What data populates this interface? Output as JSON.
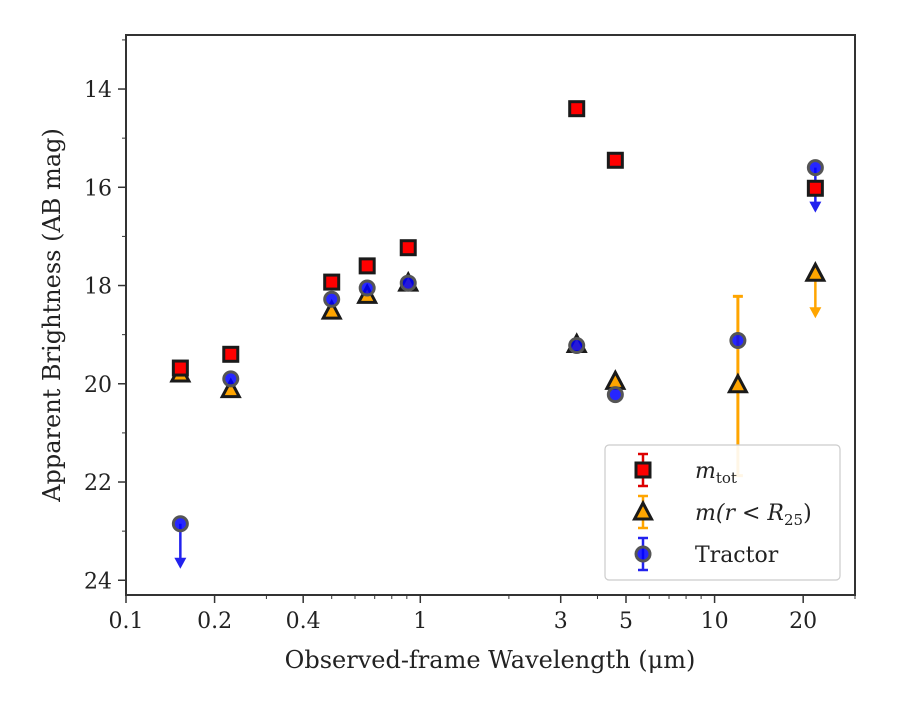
{
  "chart_data": {
    "type": "scatter",
    "title": "",
    "xlabel": "Observed-frame Wavelength (μm)",
    "ylabel": "Apparent Brightness (AB mag)",
    "xscale": "log",
    "xlim": [
      0.1,
      30
    ],
    "ylim": [
      24.3,
      12.9
    ],
    "y_inverted": true,
    "x_ticks": [
      {
        "value": 0.1,
        "label": "0.1"
      },
      {
        "value": 0.2,
        "label": "0.2"
      },
      {
        "value": 0.4,
        "label": "0.4"
      },
      {
        "value": 1,
        "label": "1"
      },
      {
        "value": 3,
        "label": "3"
      },
      {
        "value": 5,
        "label": "5"
      },
      {
        "value": 10,
        "label": "10"
      },
      {
        "value": 20,
        "label": "20"
      }
    ],
    "y_ticks": [
      {
        "value": 14,
        "label": "14"
      },
      {
        "value": 16,
        "label": "16"
      },
      {
        "value": 18,
        "label": "18"
      },
      {
        "value": 20,
        "label": "20"
      },
      {
        "value": 22,
        "label": "22"
      },
      {
        "value": 24,
        "label": "24"
      }
    ],
    "grid": false,
    "legend_position": "lower-right",
    "series": [
      {
        "name": "m_tot",
        "marker": "square",
        "color": "#ff0000",
        "edge_color": "#1a1a1a",
        "points": [
          {
            "x": 0.153,
            "y": 19.68
          },
          {
            "x": 0.227,
            "y": 19.4
          },
          {
            "x": 0.5,
            "y": 17.93
          },
          {
            "x": 0.66,
            "y": 17.6
          },
          {
            "x": 0.91,
            "y": 17.23
          },
          {
            "x": 3.4,
            "y": 14.4
          },
          {
            "x": 4.6,
            "y": 15.45
          },
          {
            "x": 22,
            "y": 16.02
          }
        ]
      },
      {
        "name": "m(r < R25)",
        "marker": "triangle",
        "color": "#ffa500",
        "edge_color": "#1a1a1a",
        "points": [
          {
            "x": 0.153,
            "y": 19.8
          },
          {
            "x": 0.227,
            "y": 20.12
          },
          {
            "x": 0.5,
            "y": 18.52
          },
          {
            "x": 0.66,
            "y": 18.2
          },
          {
            "x": 0.91,
            "y": 17.95
          },
          {
            "x": 3.4,
            "y": 19.2
          },
          {
            "x": 4.6,
            "y": 19.95
          },
          {
            "x": 12,
            "y": 20.02,
            "err_low": 1.85,
            "err_high": 1.8
          },
          {
            "x": 22,
            "y": 17.75,
            "upper_limit": true
          }
        ]
      },
      {
        "name": "Tractor",
        "marker": "circle",
        "color": "#0000ff",
        "edge_color": "#555555",
        "points": [
          {
            "x": 0.153,
            "y": 22.85,
            "upper_limit": true
          },
          {
            "x": 0.227,
            "y": 19.9
          },
          {
            "x": 0.5,
            "y": 18.28
          },
          {
            "x": 0.66,
            "y": 18.05
          },
          {
            "x": 0.91,
            "y": 17.95
          },
          {
            "x": 3.4,
            "y": 19.22
          },
          {
            "x": 4.6,
            "y": 20.22
          },
          {
            "x": 12,
            "y": 19.12
          },
          {
            "x": 22,
            "y": 15.6,
            "upper_limit": true
          }
        ]
      }
    ],
    "legend": [
      {
        "series": "m_tot",
        "sym": "m",
        "sub": "tot",
        "tail": ""
      },
      {
        "series": "m(r < R25)",
        "sym": "m",
        "sub": "",
        "tail": "(r < R",
        "tail_sub": "25",
        "tail_end": ")"
      },
      {
        "series": "Tractor",
        "plain": "Tractor"
      }
    ]
  }
}
